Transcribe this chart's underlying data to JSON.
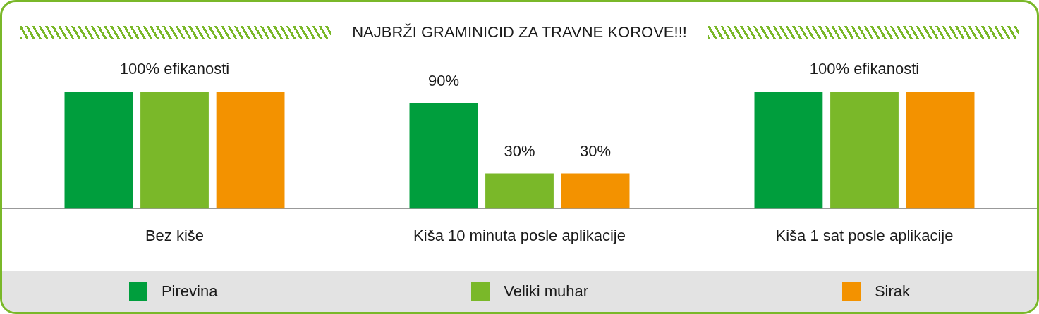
{
  "chart_data": {
    "type": "bar",
    "title": "NAJBRŽI GRAMINICID ZA TRAVNE KOROVE!!!",
    "categories": [
      "Bez kiše",
      "Kiša 10 minuta posle aplikacije",
      "Kiša 1 sat posle aplikacije"
    ],
    "series": [
      {
        "name": "Pirevina",
        "color": "#009e3d",
        "values": [
          100,
          90,
          100
        ],
        "value_labels": [
          null,
          "90%",
          null
        ]
      },
      {
        "name": "Veliki muhar",
        "color": "#7ab829",
        "values": [
          100,
          30,
          100
        ],
        "value_labels": [
          "100% efikanosti",
          "30%",
          "100% efikanosti"
        ]
      },
      {
        "name": "Sirak",
        "color": "#f39200",
        "values": [
          100,
          30,
          100
        ],
        "value_labels": [
          null,
          "30%",
          null
        ]
      }
    ],
    "legend": "bottom"
  }
}
